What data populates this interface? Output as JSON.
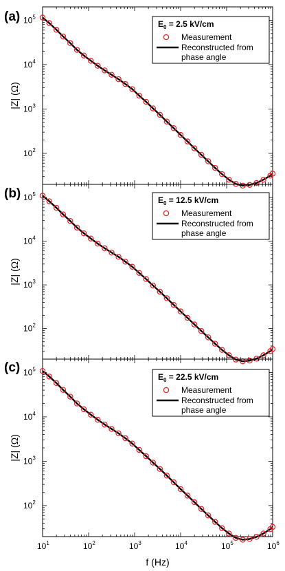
{
  "chart_data": [
    {
      "type": "scatter",
      "panel_label": "(a)",
      "legend": {
        "title_symbol": "E",
        "title_sub": "0",
        "title_value": " = 2.5 kV/cm",
        "entries": [
          "Measurement",
          "Reconstructed from",
          "phase angle"
        ]
      },
      "ylabel": "|Z| (Ω)",
      "xlabel": "",
      "xscale": "log",
      "yscale": "log",
      "xlim": [
        10,
        1000000
      ],
      "ylim": [
        20,
        200000
      ],
      "series": [
        {
          "name": "Measurement",
          "x": [
            10,
            14,
            20,
            28,
            40,
            56,
            79,
            112,
            158,
            224,
            316,
            447,
            631,
            891,
            1259,
            1778,
            2512,
            3548,
            5012,
            7079,
            10000,
            14125,
            19953,
            28184,
            39811,
            56234,
            79433,
            112202,
            158489,
            223872,
            316228,
            446684,
            630957,
            891251,
            1000000
          ],
          "y": [
            115000,
            86000,
            61000,
            43000,
            30500,
            21500,
            16000,
            12200,
            9400,
            7400,
            5900,
            4700,
            3650,
            2800,
            2000,
            1450,
            1030,
            740,
            520,
            370,
            260,
            185,
            130,
            93,
            66,
            47,
            34,
            25.5,
            20.5,
            18.7,
            19.5,
            21.5,
            25.5,
            31.5,
            35
          ]
        },
        {
          "name": "Reconstructed from phase angle",
          "x": [
            10,
            14,
            20,
            28,
            40,
            56,
            79,
            112,
            158,
            224,
            316,
            447,
            631,
            891,
            1259,
            1778,
            2512,
            3548,
            5012,
            7079,
            10000,
            14125,
            19953,
            28184,
            39811,
            56234,
            79433,
            112202,
            158489,
            223872,
            316228,
            446684,
            630957,
            891251,
            1000000
          ],
          "y": [
            115000,
            86000,
            61000,
            43000,
            30500,
            21500,
            16000,
            12200,
            9400,
            7400,
            5900,
            4700,
            3650,
            2800,
            2000,
            1450,
            1030,
            740,
            520,
            370,
            260,
            185,
            130,
            93,
            66,
            47,
            34,
            25.5,
            20.5,
            18.7,
            19.5,
            21.5,
            25.5,
            31.5,
            35
          ]
        }
      ]
    },
    {
      "type": "scatter",
      "panel_label": "(b)",
      "legend": {
        "title_symbol": "E",
        "title_sub": "0",
        "title_value": " = 12.5 kV/cm",
        "entries": [
          "Measurement",
          "Reconstructed from",
          "phase angle"
        ]
      },
      "ylabel": "|Z| (Ω)",
      "xlabel": "",
      "xscale": "log",
      "yscale": "log",
      "xlim": [
        10,
        1000000
      ],
      "ylim": [
        20,
        200000
      ],
      "series": [
        {
          "name": "Measurement",
          "x": [
            10,
            14,
            20,
            28,
            40,
            56,
            79,
            112,
            158,
            224,
            316,
            447,
            631,
            891,
            1259,
            1778,
            2512,
            3548,
            5012,
            7079,
            10000,
            14125,
            19953,
            28184,
            39811,
            56234,
            79433,
            112202,
            158489,
            223872,
            316228,
            446684,
            630957,
            891251,
            1000000
          ],
          "y": [
            110000,
            82000,
            58000,
            41000,
            29000,
            20500,
            15200,
            11500,
            8800,
            6900,
            5500,
            4400,
            3400,
            2600,
            1880,
            1360,
            970,
            700,
            495,
            350,
            247,
            176,
            124,
            88,
            63,
            45,
            32.5,
            24.5,
            19.5,
            17.8,
            18.5,
            20.5,
            24.5,
            30.5,
            34
          ]
        },
        {
          "name": "Reconstructed from phase angle",
          "x": [
            10,
            14,
            20,
            28,
            40,
            56,
            79,
            112,
            158,
            224,
            316,
            447,
            631,
            891,
            1259,
            1778,
            2512,
            3548,
            5012,
            7079,
            10000,
            14125,
            19953,
            28184,
            39811,
            56234,
            79433,
            112202,
            158489,
            223872,
            316228,
            446684,
            630957,
            891251,
            1000000
          ],
          "y": [
            110000,
            82000,
            58000,
            41000,
            29000,
            20500,
            15200,
            11500,
            8800,
            6900,
            5500,
            4400,
            3400,
            2600,
            1880,
            1360,
            970,
            700,
            495,
            350,
            247,
            176,
            124,
            88,
            63,
            45,
            32.5,
            24.5,
            19.5,
            17.8,
            18.5,
            20.5,
            24.5,
            30.5,
            34
          ]
        }
      ]
    },
    {
      "type": "scatter",
      "panel_label": "(c)",
      "legend": {
        "title_symbol": "E",
        "title_sub": "0",
        "title_value": " = 22.5 kV/cm",
        "entries": [
          "Measurement",
          "Reconstructed from",
          "phase angle"
        ]
      },
      "ylabel": "|Z| (Ω)",
      "xlabel": "f (Hz)",
      "xscale": "log",
      "yscale": "log",
      "xlim": [
        10,
        1000000
      ],
      "ylim": [
        20,
        200000
      ],
      "xticks": [
        {
          "base": "10",
          "exp": "1"
        },
        {
          "base": "10",
          "exp": "2"
        },
        {
          "base": "10",
          "exp": "3"
        },
        {
          "base": "10",
          "exp": "4"
        },
        {
          "base": "10",
          "exp": "5"
        },
        {
          "base": "10",
          "exp": "6"
        }
      ],
      "series": [
        {
          "name": "Measurement",
          "x": [
            10,
            14,
            20,
            28,
            40,
            56,
            79,
            112,
            158,
            224,
            316,
            447,
            631,
            891,
            1259,
            1778,
            2512,
            3548,
            5012,
            7079,
            10000,
            14125,
            19953,
            28184,
            39811,
            56234,
            79433,
            112202,
            158489,
            223872,
            316228,
            446684,
            630957,
            891251,
            1000000
          ],
          "y": [
            108000,
            81000,
            57500,
            40500,
            28500,
            20000,
            14800,
            11200,
            8600,
            6700,
            5350,
            4250,
            3300,
            2500,
            1800,
            1300,
            930,
            670,
            475,
            335,
            236,
            168,
            119,
            84,
            60,
            43,
            31,
            23.5,
            18.7,
            17,
            17.7,
            19.7,
            23.5,
            29.5,
            33
          ]
        },
        {
          "name": "Reconstructed from phase angle",
          "x": [
            10,
            14,
            20,
            28,
            40,
            56,
            79,
            112,
            158,
            224,
            316,
            447,
            631,
            891,
            1259,
            1778,
            2512,
            3548,
            5012,
            7079,
            10000,
            14125,
            19953,
            28184,
            39811,
            56234,
            79433,
            112202,
            158489,
            223872,
            316228,
            446684,
            630957,
            891251,
            1000000
          ],
          "y": [
            108000,
            81000,
            57500,
            40500,
            28500,
            20000,
            14800,
            11200,
            8600,
            6700,
            5350,
            4250,
            3300,
            2500,
            1800,
            1300,
            930,
            670,
            475,
            335,
            236,
            168,
            119,
            84,
            60,
            43,
            31,
            23.5,
            18.7,
            17,
            17.7,
            19.7,
            23.5,
            29.5,
            33
          ]
        }
      ]
    }
  ],
  "yticks": [
    {
      "base": "10",
      "exp": "2",
      "value": 100
    },
    {
      "base": "10",
      "exp": "3",
      "value": 1000
    },
    {
      "base": "10",
      "exp": "4",
      "value": 10000
    },
    {
      "base": "10",
      "exp": "5",
      "value": 100000
    }
  ],
  "colors": {
    "marker": "#e8262b",
    "line": "#000000",
    "axis": "#000000"
  }
}
